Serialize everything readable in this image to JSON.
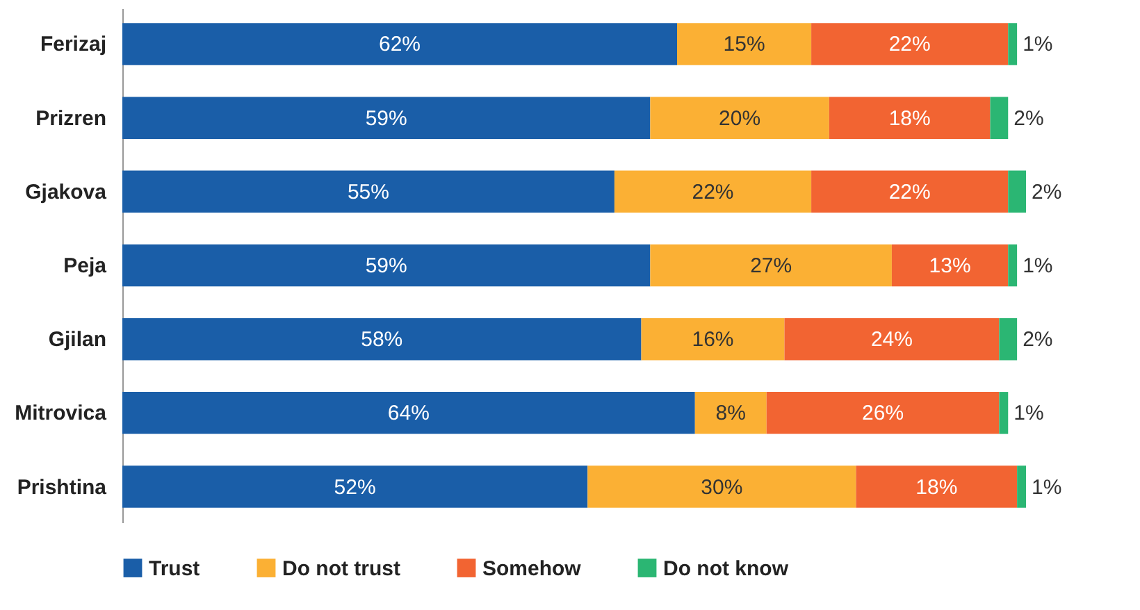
{
  "chart_data": {
    "type": "bar",
    "orientation": "horizontal",
    "stacked": true,
    "legend": "bottom",
    "grid": false,
    "categories": [
      "Ferizaj",
      "Prizren",
      "Gjakova",
      "Peja",
      "Gjilan",
      "Mitrovica",
      "Prishtina"
    ],
    "series": [
      {
        "name": "Trust",
        "color": "#1a5ea8",
        "values": [
          62,
          59,
          55,
          59,
          58,
          64,
          52
        ],
        "value_labels": [
          "62%",
          "59%",
          "55%",
          "59%",
          "58%",
          "64%",
          "52%"
        ]
      },
      {
        "name": "Do not trust",
        "color": "#fbb034",
        "values": [
          15,
          20,
          22,
          27,
          16,
          8,
          30
        ],
        "value_labels": [
          "15%",
          "20%",
          "22%",
          "27%",
          "16%",
          "8%",
          "30%"
        ]
      },
      {
        "name": "Somehow",
        "color": "#f26432",
        "values": [
          22,
          18,
          22,
          13,
          24,
          26,
          18
        ],
        "value_labels": [
          "22%",
          "18%",
          "22%",
          "13%",
          "24%",
          "26%",
          "18%"
        ]
      },
      {
        "name": "Do not know",
        "color": "#2bb673",
        "values": [
          1,
          2,
          2,
          1,
          2,
          1,
          1
        ],
        "value_labels": [
          "1%",
          "2%",
          "2%",
          "1%",
          "2%",
          "1%",
          "1%"
        ]
      }
    ]
  }
}
